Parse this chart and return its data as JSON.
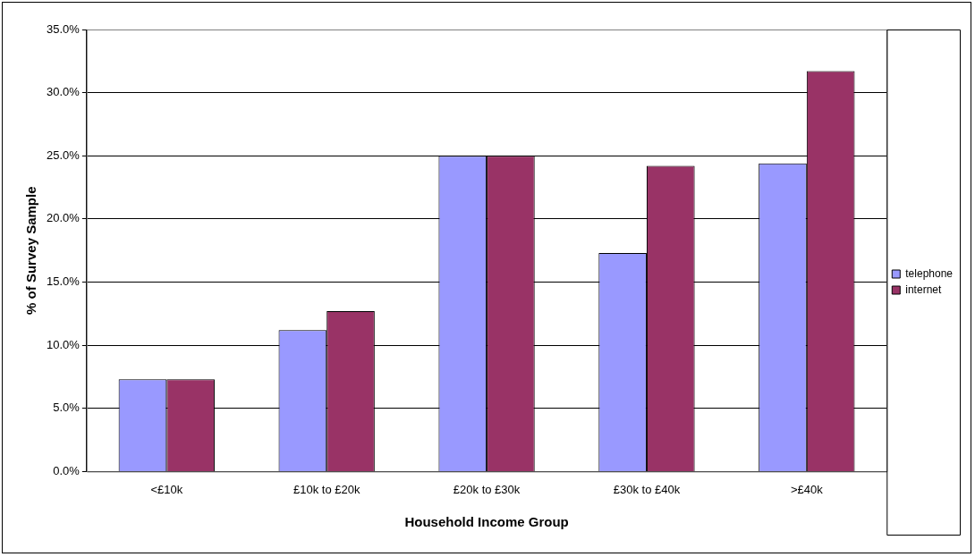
{
  "chart_data": {
    "type": "bar",
    "xlabel": "Household Income Group",
    "ylabel": "% of Survey Sample",
    "categories": [
      "<£10k",
      "£10k to £20k",
      "£20k to £30k",
      "£30k to £40k",
      ">£40k"
    ],
    "series": [
      {
        "name": "telephone",
        "color": "#9999ff",
        "values": [
          7.3,
          11.2,
          25.0,
          17.3,
          24.4
        ]
      },
      {
        "name": "internet",
        "color": "#993366",
        "values": [
          7.3,
          12.7,
          25.0,
          24.2,
          31.7
        ]
      }
    ],
    "ylim": [
      0,
      35
    ],
    "yticks": [
      {
        "value": 0,
        "label": "0.0%"
      },
      {
        "value": 5,
        "label": "5.0%"
      },
      {
        "value": 10,
        "label": "10.0%"
      },
      {
        "value": 15,
        "label": "15.0%"
      },
      {
        "value": 20,
        "label": "20.0%"
      },
      {
        "value": 25,
        "label": "25.0%"
      },
      {
        "value": 30,
        "label": "30.0%"
      },
      {
        "value": 35,
        "label": "35.0%"
      }
    ],
    "grid": "y",
    "legend": "right"
  }
}
